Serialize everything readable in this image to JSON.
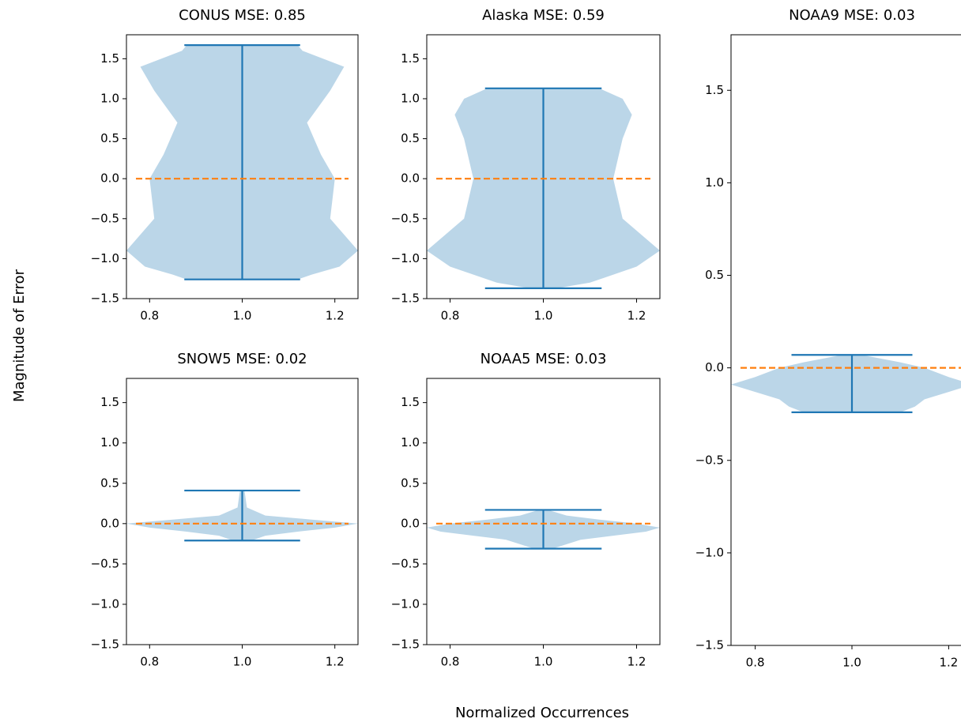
{
  "ylabel": "Magnitude of Error",
  "xlabel": "Normalized Occurrences",
  "chart_data": [
    {
      "type": "violin",
      "title": "CONUS MSE: 0.85",
      "position": 1,
      "width": 0.5,
      "min": -1.26,
      "max": 1.67,
      "reference": 0,
      "kde_y": [
        1.67,
        1.6,
        1.4,
        1.1,
        0.7,
        0.3,
        0.0,
        -0.5,
        -0.7,
        -0.9,
        -1.1,
        -1.2,
        -1.26
      ],
      "kde_halfwidth": [
        0.12,
        0.13,
        0.22,
        0.19,
        0.14,
        0.17,
        0.2,
        0.19,
        0.22,
        0.25,
        0.21,
        0.15,
        0.12
      ],
      "color": "#1f77b4",
      "violin_alpha": 0.3,
      "reference_color": "#ff7f0e",
      "xlim": [
        0.75,
        1.25
      ],
      "xticks": [
        0.8,
        {
          "value": 1,
          "label": "1.0"
        },
        1.2
      ],
      "ylim": [
        -1.5,
        1.8
      ],
      "yticks": [
        {
          "value": -1.5,
          "label": "−1.5"
        },
        {
          "value": -1,
          "label": "−1.0"
        },
        {
          "value": -0.5,
          "label": "−0.5"
        },
        {
          "value": 0,
          "label": "0.0"
        },
        0.5,
        {
          "value": 1,
          "label": "1.0"
        },
        1.5
      ]
    },
    {
      "type": "violin",
      "title": "Alaska MSE: 0.59",
      "position": 1,
      "width": 0.5,
      "min": -1.37,
      "max": 1.13,
      "reference": 0,
      "kde_y": [
        1.13,
        1.0,
        0.8,
        0.5,
        0.0,
        -0.5,
        -0.9,
        -1.1,
        -1.3,
        -1.37
      ],
      "kde_halfwidth": [
        0.12,
        0.17,
        0.19,
        0.17,
        0.15,
        0.17,
        0.25,
        0.2,
        0.1,
        0.03
      ],
      "color": "#1f77b4",
      "violin_alpha": 0.3,
      "reference_color": "#ff7f0e",
      "xlim": [
        0.75,
        1.25
      ],
      "xticks": [
        0.8,
        {
          "value": 1,
          "label": "1.0"
        },
        1.2
      ],
      "ylim": [
        -1.5,
        1.8
      ],
      "yticks": [
        {
          "value": -1.5,
          "label": "−1.5"
        },
        {
          "value": -1,
          "label": "−1.0"
        },
        {
          "value": -0.5,
          "label": "−0.5"
        },
        {
          "value": 0,
          "label": "0.0"
        },
        0.5,
        {
          "value": 1,
          "label": "1.0"
        },
        1.5
      ]
    },
    {
      "type": "violin",
      "title": "NOAA9 MSE: 0.03",
      "position": 1,
      "width": 0.5,
      "min": -0.24,
      "max": 0.07,
      "reference": 0,
      "kde_y": [
        0.07,
        0.03,
        0.0,
        -0.05,
        -0.09,
        -0.13,
        -0.17,
        -0.21,
        -0.24
      ],
      "kde_halfwidth": [
        0.02,
        0.1,
        0.15,
        0.2,
        0.25,
        0.2,
        0.15,
        0.13,
        0.1
      ],
      "color": "#1f77b4",
      "violin_alpha": 0.3,
      "reference_color": "#ff7f0e",
      "xlim": [
        0.75,
        1.25
      ],
      "xticks": [
        0.8,
        {
          "value": 1,
          "label": "1.0"
        },
        1.2
      ],
      "ylim": [
        -1.5,
        1.8
      ],
      "yticks": [
        {
          "value": -1.5,
          "label": "−1.5"
        },
        {
          "value": -1,
          "label": "−1.0"
        },
        {
          "value": -0.5,
          "label": "−0.5"
        },
        {
          "value": 0,
          "label": "0.0"
        },
        0.5,
        {
          "value": 1,
          "label": "1.0"
        },
        1.5
      ]
    },
    {
      "type": "violin",
      "title": "SNOW5 MSE: 0.02",
      "position": 1,
      "width": 0.5,
      "min": -0.21,
      "max": 0.41,
      "reference": 0,
      "kde_y": [
        0.41,
        0.2,
        0.1,
        0.05,
        0.0,
        -0.05,
        -0.1,
        -0.15,
        -0.21
      ],
      "kde_halfwidth": [
        0.005,
        0.01,
        0.05,
        0.15,
        0.25,
        0.2,
        0.12,
        0.05,
        0.02
      ],
      "color": "#1f77b4",
      "violin_alpha": 0.3,
      "reference_color": "#ff7f0e",
      "xlim": [
        0.75,
        1.25
      ],
      "xticks": [
        0.8,
        {
          "value": 1,
          "label": "1.0"
        },
        1.2
      ],
      "ylim": [
        -1.5,
        1.8
      ],
      "yticks": [
        {
          "value": -1.5,
          "label": "−1.5"
        },
        {
          "value": -1,
          "label": "−1.0"
        },
        {
          "value": -0.5,
          "label": "−0.5"
        },
        {
          "value": 0,
          "label": "0.0"
        },
        0.5,
        {
          "value": 1,
          "label": "1.0"
        },
        1.5
      ]
    },
    {
      "type": "violin",
      "title": "NOAA5 MSE: 0.03",
      "position": 1,
      "width": 0.5,
      "min": -0.31,
      "max": 0.17,
      "reference": 0,
      "kde_y": [
        0.17,
        0.1,
        0.05,
        0.0,
        -0.05,
        -0.1,
        -0.15,
        -0.2,
        -0.31
      ],
      "kde_halfwidth": [
        0.01,
        0.05,
        0.12,
        0.2,
        0.25,
        0.22,
        0.15,
        0.08,
        0.02
      ],
      "color": "#1f77b4",
      "violin_alpha": 0.3,
      "reference_color": "#ff7f0e",
      "xlim": [
        0.75,
        1.25
      ],
      "xticks": [
        0.8,
        {
          "value": 1,
          "label": "1.0"
        },
        1.2
      ],
      "ylim": [
        -1.5,
        1.8
      ],
      "yticks": [
        {
          "value": -1.5,
          "label": "−1.5"
        },
        {
          "value": -1,
          "label": "−1.0"
        },
        {
          "value": -0.5,
          "label": "−0.5"
        },
        {
          "value": 0,
          "label": "0.0"
        },
        0.5,
        {
          "value": 1,
          "label": "1.0"
        },
        1.5
      ]
    }
  ]
}
